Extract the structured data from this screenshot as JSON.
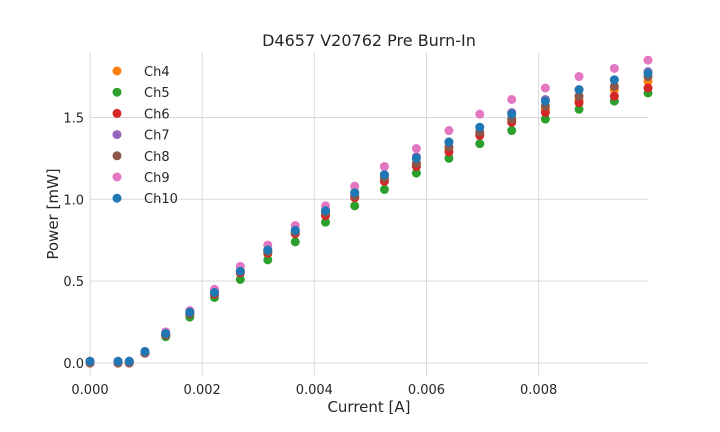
{
  "chart_data": {
    "type": "scatter",
    "title": "D4657 V20762 Pre Burn-In",
    "xlabel": "Current [A]",
    "ylabel": "Power [mW]",
    "xlim": [
      0,
      0.00995
    ],
    "ylim": [
      -0.08,
      1.9
    ],
    "xticks": [
      0,
      0.002,
      0.004,
      0.006,
      0.008
    ],
    "xtick_labels": [
      "0.000",
      "0.002",
      "0.004",
      "0.006",
      "0.008"
    ],
    "yticks": [
      0,
      0.5,
      1.0,
      1.5
    ],
    "ytick_labels": [
      "0.0",
      "0.5",
      "1.0",
      "1.5"
    ],
    "grid": true,
    "legend_position": "upper-left",
    "x": [
      0,
      0.0005,
      0.0007,
      0.00098,
      0.00135,
      0.00178,
      0.00222,
      0.00268,
      0.00317,
      0.00366,
      0.0042,
      0.00472,
      0.00525,
      0.00582,
      0.0064,
      0.00695,
      0.00752,
      0.00812,
      0.00872,
      0.00935,
      0.00995
    ],
    "series": [
      {
        "name": "Ch4",
        "color": "#ff7f0e",
        "values": [
          0.0,
          0.0,
          0.0,
          0.06,
          0.17,
          0.3,
          0.42,
          0.55,
          0.68,
          0.79,
          0.91,
          1.01,
          1.12,
          1.22,
          1.31,
          1.4,
          1.48,
          1.55,
          1.61,
          1.67,
          1.72
        ]
      },
      {
        "name": "Ch5",
        "color": "#2ca02c",
        "values": [
          0.0,
          0.0,
          0.0,
          0.06,
          0.16,
          0.28,
          0.4,
          0.51,
          0.63,
          0.74,
          0.86,
          0.96,
          1.06,
          1.16,
          1.25,
          1.34,
          1.42,
          1.49,
          1.55,
          1.6,
          1.65
        ]
      },
      {
        "name": "Ch6",
        "color": "#d62728",
        "values": [
          0.0,
          0.0,
          0.0,
          0.06,
          0.17,
          0.3,
          0.42,
          0.55,
          0.67,
          0.79,
          0.9,
          1.01,
          1.11,
          1.2,
          1.29,
          1.39,
          1.47,
          1.53,
          1.59,
          1.63,
          1.68
        ]
      },
      {
        "name": "Ch7",
        "color": "#9467bd",
        "values": [
          0.01,
          0.01,
          0.01,
          0.07,
          0.18,
          0.31,
          0.43,
          0.56,
          0.69,
          0.81,
          0.93,
          1.04,
          1.15,
          1.26,
          1.35,
          1.44,
          1.53,
          1.61,
          1.67,
          1.73,
          1.78
        ]
      },
      {
        "name": "Ch8",
        "color": "#8c564b",
        "values": [
          0.0,
          0.0,
          0.0,
          0.06,
          0.17,
          0.3,
          0.43,
          0.56,
          0.68,
          0.8,
          0.92,
          1.02,
          1.13,
          1.22,
          1.32,
          1.41,
          1.49,
          1.57,
          1.63,
          1.69,
          1.75
        ]
      },
      {
        "name": "Ch9",
        "color": "#e377c2",
        "values": [
          0.01,
          0.01,
          0.01,
          0.07,
          0.19,
          0.32,
          0.45,
          0.59,
          0.72,
          0.84,
          0.96,
          1.08,
          1.2,
          1.31,
          1.42,
          1.52,
          1.61,
          1.68,
          1.75,
          1.8,
          1.85
        ]
      },
      {
        "name": "Ch10",
        "color": "#1f77b4",
        "values": [
          0.01,
          0.01,
          0.01,
          0.07,
          0.18,
          0.31,
          0.43,
          0.56,
          0.69,
          0.81,
          0.93,
          1.04,
          1.15,
          1.25,
          1.35,
          1.44,
          1.52,
          1.6,
          1.67,
          1.73,
          1.77
        ]
      }
    ]
  }
}
